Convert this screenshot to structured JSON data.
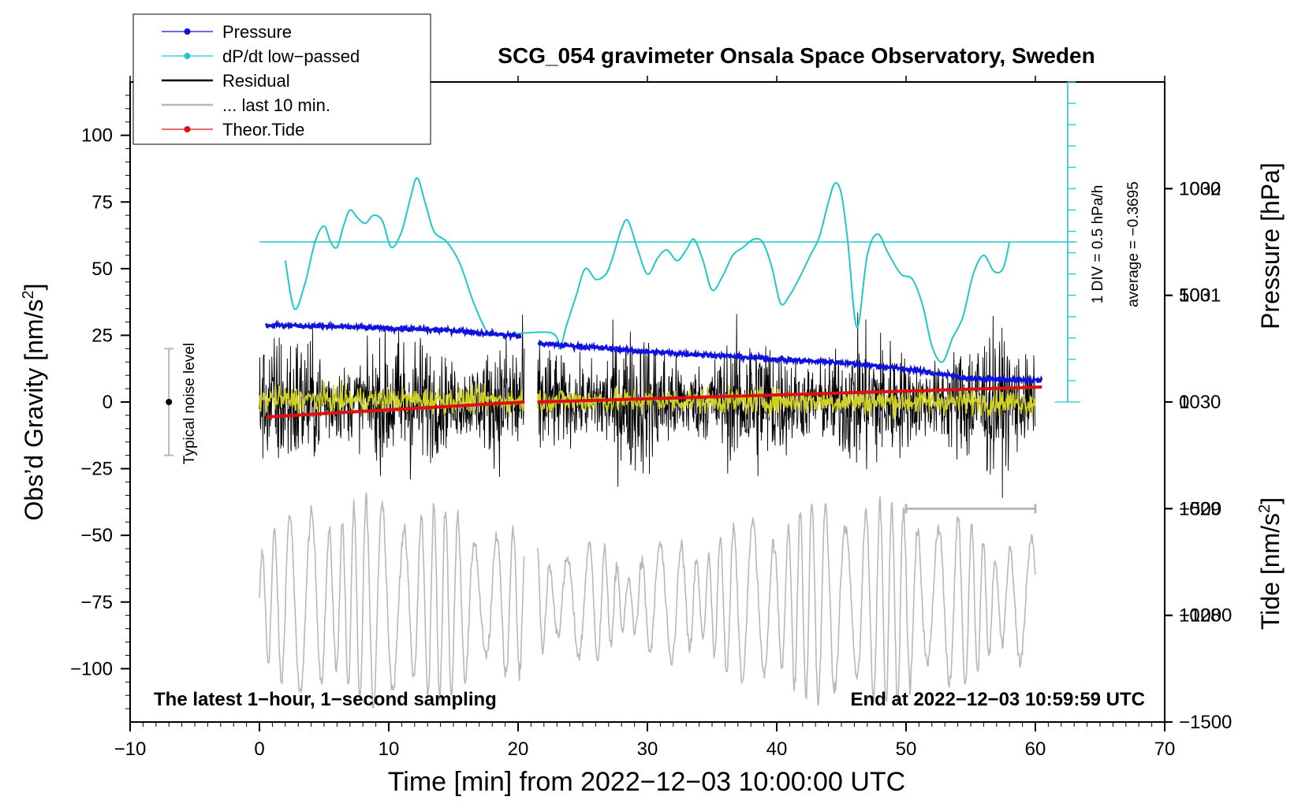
{
  "chart_data": {
    "type": "line",
    "title": "SCG_054 gravimeter Onsala Space Observatory, Sweden",
    "xlabel": "Time [min] from 2022−12−03 10:00:00 UTC",
    "ylabel_left_text": "Obs’d Gravity [nm/s",
    "ylabel_left_sup": "2",
    "ylabel_left_end": "]",
    "ylabel_pressure": "Pressure [hPa]",
    "ylabel_tide_text": "Tide [nm/s",
    "ylabel_tide_sup": "2",
    "ylabel_tide_end": "]",
    "xlim": [
      -10,
      70
    ],
    "ylim_gravity": [
      -120,
      120
    ],
    "ylim_pressure": [
      1027,
      1033
    ],
    "ylim_tide": [
      -1500,
      1500
    ],
    "x_ticks": [
      -10,
      0,
      10,
      20,
      30,
      40,
      50,
      60,
      70
    ],
    "x_tick_labels": [
      "−10",
      "0",
      "10",
      "20",
      "30",
      "40",
      "50",
      "60",
      "70"
    ],
    "y_ticks_gravity": [
      100,
      75,
      50,
      25,
      0,
      -25,
      -50,
      -75,
      -100
    ],
    "y_tick_labels_gravity": [
      "100",
      "75",
      "50",
      "25",
      "0",
      "−25",
      "−50",
      "−75",
      "−100"
    ],
    "y_ticks_pressure": [
      1032,
      1031,
      1030,
      1029,
      1028
    ],
    "y_tick_labels_pressure": [
      "1032",
      "1031",
      "1030",
      "1029",
      "1028"
    ],
    "y_ticks_tide": [
      1000,
      500,
      0,
      -500,
      -1000,
      -1500
    ],
    "y_tick_labels_tide": [
      "1000",
      "500",
      "0",
      "−500",
      "−1000",
      "−1500"
    ],
    "legend": [
      {
        "label": "Pressure",
        "color": "#1010e0",
        "marker": true
      },
      {
        "label": "dP/dt low−passed",
        "color": "#22c8c8",
        "marker": true
      },
      {
        "label": "Residual",
        "color": "#000000",
        "marker": false
      },
      {
        "label": "... last 10 min.",
        "color": "#b8b8b8",
        "marker": false
      },
      {
        "label": "Theor.Tide",
        "color": "#e01010",
        "marker": true
      }
    ],
    "annotations": {
      "bottom_left": "The latest 1−hour, 1−second sampling",
      "bottom_right": "End at 2022−12−03 10:59:59 UTC",
      "noise_level": "Typical noise level",
      "dpdt_scale": "1 DIV = 0.5 hPa/h",
      "dpdt_average": "average = −0.3695"
    },
    "noise_bar": {
      "x": -7,
      "center": 0,
      "half_range": 20
    },
    "dpdt_scale_axis": {
      "x": 62.5,
      "gravity_bottom": 0,
      "gravity_top": 120,
      "ticks": 15
    },
    "dpdt_zero_line_gravity": 60,
    "last10_window_min": [
      50,
      60
    ],
    "gap_min": [
      20.5,
      21.5
    ],
    "series": [
      {
        "name": "Pressure",
        "axis": "pressure",
        "color": "#1010e0",
        "x": [
          0.5,
          5,
          10,
          15,
          20,
          21.5,
          25,
          30,
          35,
          40,
          45,
          50,
          55,
          60.5
        ],
        "values": [
          1030.72,
          1030.71,
          1030.69,
          1030.67,
          1030.62,
          1030.55,
          1030.52,
          1030.47,
          1030.44,
          1030.4,
          1030.37,
          1030.31,
          1030.22,
          1030.2
        ]
      },
      {
        "name": "dP/dt low-passed",
        "axis": "gravity",
        "color": "#22c8c8",
        "x": [
          2,
          2.7,
          3.5,
          4.3,
          5,
          5.5,
          6,
          6.5,
          7,
          7.6,
          8.2,
          8.8,
          9.5,
          10.2,
          11,
          11.7,
          12.2,
          12.8,
          13.5,
          14.5,
          15.5,
          16.5,
          17.5,
          18,
          22.5,
          23.2,
          23.7,
          24.5,
          25.2,
          26,
          26.8,
          27.3,
          28,
          28.5,
          29.2,
          30,
          30.8,
          31.5,
          32.3,
          33,
          33.6,
          34.3,
          35,
          35.8,
          36.6,
          37.4,
          38.2,
          38.9,
          39.6,
          40.3,
          41,
          41.8,
          42.6,
          43.3,
          44,
          44.5,
          45,
          45.5,
          46.2,
          47,
          47.8,
          48.6,
          49.6,
          50.5,
          51.3,
          52,
          52.8,
          53.6,
          54.4,
          55.2,
          56,
          56.8,
          57.5,
          58
        ],
        "values": [
          53,
          35,
          44,
          60,
          66,
          60,
          58,
          66,
          72,
          69,
          67,
          70,
          68,
          58,
          64,
          77,
          84,
          75,
          64,
          60,
          52,
          38,
          27,
          25,
          26,
          20,
          28,
          40,
          50,
          46,
          48,
          54,
          65,
          68,
          58,
          48,
          54,
          57,
          53,
          57,
          61,
          53,
          42,
          47,
          55,
          58,
          61,
          60,
          51,
          37,
          40,
          47,
          55,
          62,
          75,
          82,
          78,
          60,
          28,
          55,
          63,
          56,
          48,
          46,
          36,
          21,
          15,
          24,
          32,
          48,
          55,
          49,
          50,
          60
        ]
      },
      {
        "name": "Residual",
        "axis": "gravity",
        "color": "#000000",
        "x": [
          0,
          60
        ],
        "values": [
          0,
          0
        ],
        "amplitude": 30
      },
      {
        "name": "Residual smoothed",
        "axis": "gravity",
        "color": "#d0d020",
        "x": [
          0,
          60
        ],
        "values": [
          1,
          0
        ],
        "amplitude": 4
      },
      {
        "name": "... last 10 min.",
        "axis": "gravity",
        "color": "#b8b8b8",
        "x": [
          0,
          60
        ],
        "values": [
          -75,
          -75
        ],
        "amplitude": 30
      },
      {
        "name": "Theor.Tide",
        "axis": "tide",
        "color": "#e01010",
        "x": [
          0.5,
          20.5,
          21.5,
          60.5
        ],
        "values": [
          -70,
          0,
          0,
          70
        ]
      }
    ]
  }
}
